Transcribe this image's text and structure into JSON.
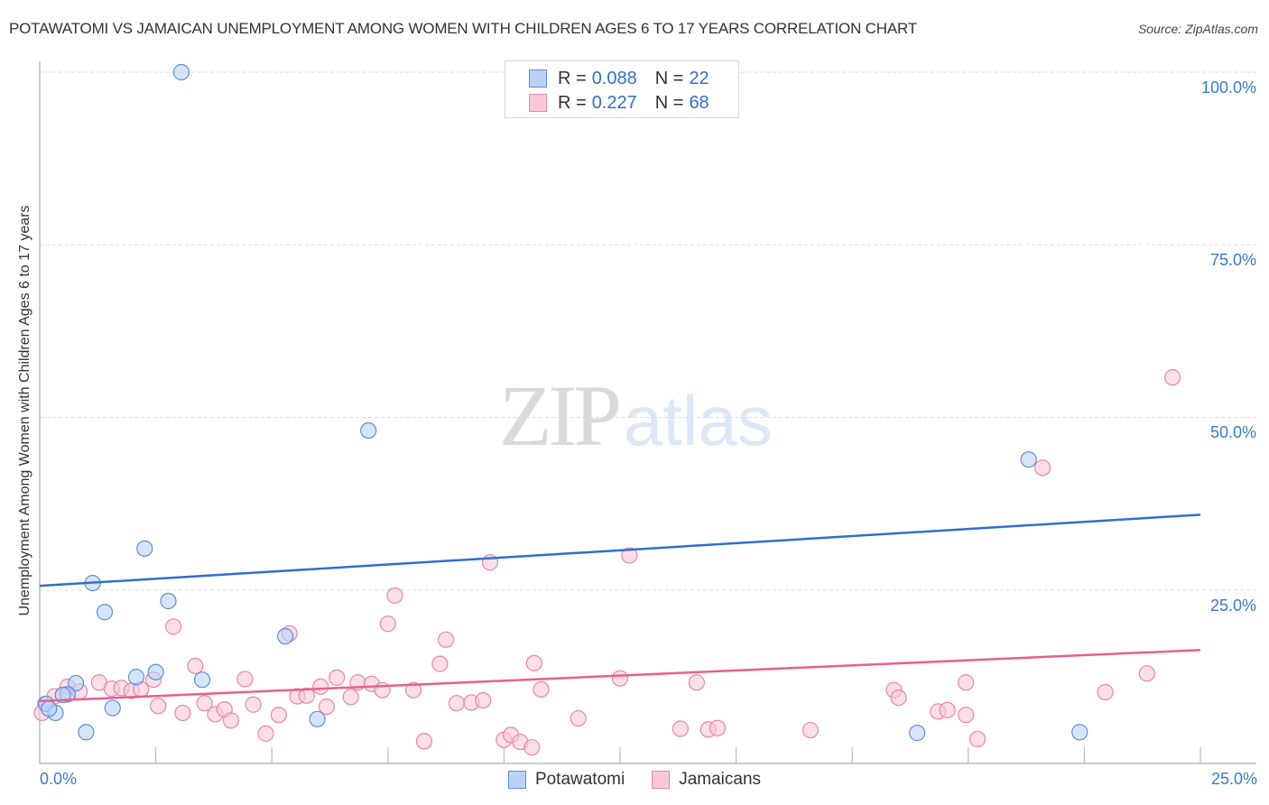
{
  "header": {
    "title": "POTAWATOMI VS JAMAICAN UNEMPLOYMENT AMONG WOMEN WITH CHILDREN AGES 6 TO 17 YEARS CORRELATION CHART",
    "source": "Source: ZipAtlas.com"
  },
  "watermark": {
    "zip": "ZIP",
    "atlas": "atlas"
  },
  "legend": {
    "rows": [
      {
        "series": "Potawatomi",
        "r_label": "R =",
        "r_value": "0.088",
        "n_label": "N =",
        "n_value": "22"
      },
      {
        "series": "Jamaicans",
        "r_label": "R =",
        "r_value": "0.227",
        "n_label": "N =",
        "n_value": "68"
      }
    ]
  },
  "axes": {
    "ylabel": "Unemployment Among Women with Children Ages 6 to 17 years",
    "x_ticks": [
      "0.0%",
      "25.0%"
    ],
    "y_ticks": [
      "100.0%",
      "75.0%",
      "50.0%",
      "25.0%"
    ]
  },
  "bottom_legend": [
    "Potawatomi",
    "Jamaicans"
  ],
  "colors": {
    "potawatomi_fill": "#b9d3f5",
    "potawatomi_stroke": "#5b8fdb",
    "potawatomi_line": "#2f6fcf",
    "jamaicans_fill": "#f8c8d6",
    "jamaicans_stroke": "#e887a6",
    "jamaicans_line": "#e8608a",
    "tick_label": "#3a78d4"
  },
  "chart_data": {
    "type": "scatter",
    "title": "POTAWATOMI VS JAMAICAN UNEMPLOYMENT AMONG WOMEN WITH CHILDREN AGES 6 TO 17 YEARS CORRELATION CHART",
    "xlabel": "",
    "ylabel": "Unemployment Among Women with Children Ages 6 to 17 years",
    "xlim": [
      0,
      25
    ],
    "ylim": [
      0,
      100
    ],
    "x_tick_labels": [
      "0.0%",
      "25.0%"
    ],
    "y_tick_labels": [
      "25.0%",
      "50.0%",
      "75.0%",
      "100.0%"
    ],
    "grid": true,
    "legend_position": "top-center and bottom",
    "series": [
      {
        "name": "Potawatomi",
        "R": 0.088,
        "N": 22,
        "trendline": {
          "x": [
            0,
            25
          ],
          "y": [
            25.6,
            35.9
          ]
        },
        "points": [
          [
            3.05,
            100.0
          ],
          [
            7.08,
            48.1
          ],
          [
            2.26,
            31.0
          ],
          [
            1.14,
            26.0
          ],
          [
            2.77,
            23.4
          ],
          [
            1.4,
            21.8
          ],
          [
            5.29,
            18.3
          ],
          [
            2.5,
            13.1
          ],
          [
            2.08,
            12.4
          ],
          [
            3.5,
            12.0
          ],
          [
            0.78,
            11.5
          ],
          [
            0.6,
            9.9
          ],
          [
            0.14,
            8.5
          ],
          [
            0.34,
            7.2
          ],
          [
            1.57,
            7.9
          ],
          [
            5.98,
            6.3
          ],
          [
            1.0,
            4.4
          ],
          [
            0.2,
            7.8
          ],
          [
            21.3,
            43.9
          ],
          [
            18.9,
            4.3
          ],
          [
            22.4,
            4.4
          ],
          [
            0.5,
            9.8
          ]
        ]
      },
      {
        "name": "Jamaicans",
        "R": 0.227,
        "N": 68,
        "trendline": {
          "x": [
            0,
            25
          ],
          "y": [
            8.9,
            16.3
          ]
        },
        "points": [
          [
            0.12,
            8.5
          ],
          [
            0.32,
            9.6
          ],
          [
            0.6,
            11.0
          ],
          [
            0.86,
            10.3
          ],
          [
            1.28,
            11.6
          ],
          [
            1.55,
            10.7
          ],
          [
            1.76,
            10.8
          ],
          [
            1.98,
            10.4
          ],
          [
            2.18,
            10.6
          ],
          [
            2.45,
            12.0
          ],
          [
            2.55,
            8.2
          ],
          [
            2.88,
            19.7
          ],
          [
            3.08,
            7.2
          ],
          [
            3.35,
            14.0
          ],
          [
            3.55,
            8.6
          ],
          [
            3.78,
            7.0
          ],
          [
            3.98,
            7.7
          ],
          [
            4.12,
            6.1
          ],
          [
            4.42,
            12.1
          ],
          [
            4.6,
            8.4
          ],
          [
            4.87,
            4.2
          ],
          [
            5.15,
            6.9
          ],
          [
            5.38,
            18.7
          ],
          [
            5.55,
            9.6
          ],
          [
            5.75,
            9.7
          ],
          [
            6.05,
            11.0
          ],
          [
            6.18,
            8.1
          ],
          [
            6.4,
            12.3
          ],
          [
            6.7,
            9.5
          ],
          [
            6.85,
            11.6
          ],
          [
            7.15,
            11.4
          ],
          [
            7.38,
            10.5
          ],
          [
            7.65,
            24.2
          ],
          [
            7.5,
            20.1
          ],
          [
            8.05,
            10.5
          ],
          [
            8.28,
            3.1
          ],
          [
            8.62,
            14.3
          ],
          [
            8.75,
            17.8
          ],
          [
            8.98,
            8.6
          ],
          [
            9.3,
            8.7
          ],
          [
            9.7,
            29.0
          ],
          [
            9.55,
            9.0
          ],
          [
            10.0,
            3.3
          ],
          [
            10.15,
            4.0
          ],
          [
            10.35,
            3.0
          ],
          [
            10.65,
            14.4
          ],
          [
            10.6,
            2.2
          ],
          [
            10.8,
            10.6
          ],
          [
            11.6,
            6.4
          ],
          [
            12.5,
            12.2
          ],
          [
            12.7,
            30.0
          ],
          [
            13.8,
            4.9
          ],
          [
            14.15,
            11.6
          ],
          [
            14.4,
            4.8
          ],
          [
            14.6,
            5.0
          ],
          [
            16.6,
            4.7
          ],
          [
            18.4,
            10.5
          ],
          [
            18.5,
            9.4
          ],
          [
            19.35,
            7.4
          ],
          [
            19.55,
            7.6
          ],
          [
            19.95,
            6.9
          ],
          [
            20.2,
            3.4
          ],
          [
            19.95,
            11.6
          ],
          [
            21.6,
            42.7
          ],
          [
            22.95,
            10.2
          ],
          [
            23.85,
            12.9
          ],
          [
            24.4,
            55.8
          ],
          [
            0.05,
            7.2
          ]
        ]
      }
    ]
  }
}
